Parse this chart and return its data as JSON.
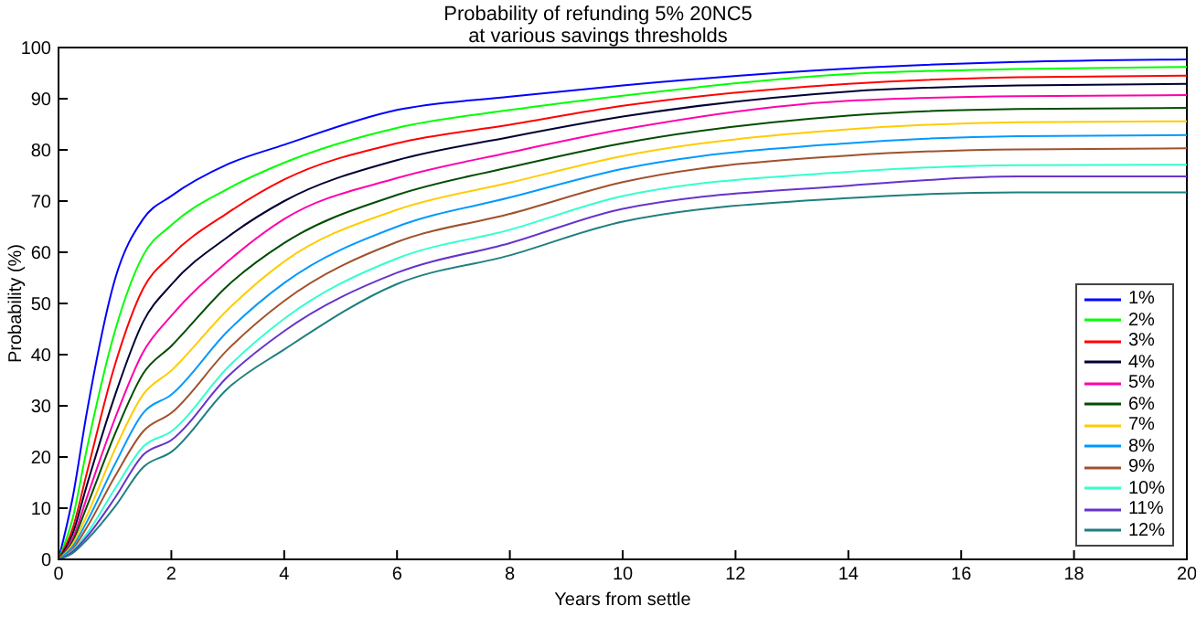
{
  "chart_data": {
    "type": "line",
    "title": "Probability of refunding 5% 20NC5",
    "subtitle": "at various savings thresholds",
    "xlabel": "Years from settle",
    "ylabel": "Probability (%)",
    "x": [
      0,
      0.25,
      0.5,
      1,
      1.5,
      2,
      3,
      4,
      6,
      8,
      10,
      14,
      17,
      20
    ],
    "xlim": [
      0,
      20
    ],
    "xticks": [
      0,
      2,
      4,
      6,
      8,
      10,
      12,
      14,
      16,
      18,
      20
    ],
    "ylim": [
      0,
      100
    ],
    "yticks": [
      0,
      10,
      20,
      30,
      40,
      50,
      60,
      70,
      80,
      90,
      100
    ],
    "grid": false,
    "legend": "bottom right",
    "marker": "none",
    "line_style": "solid",
    "series": [
      {
        "name": "1%",
        "color": "#0000ff",
        "values": [
          0,
          12,
          28.6,
          54.7,
          66.5,
          71,
          77.2,
          81,
          87.8,
          90.4,
          92.6,
          95.9,
          97.2,
          97.7
        ]
      },
      {
        "name": "2%",
        "color": "#00ff00",
        "values": [
          0,
          8,
          21.5,
          44.6,
          59.4,
          65.3,
          72.4,
          77.5,
          84.3,
          87.8,
          90.6,
          94.8,
          95.8,
          96.2
        ]
      },
      {
        "name": "3%",
        "color": "#ff0000",
        "values": [
          0,
          6,
          16.8,
          38,
          52.9,
          59.4,
          67.7,
          74.2,
          81.3,
          84.9,
          88.6,
          92.9,
          94.2,
          94.5
        ]
      },
      {
        "name": "4%",
        "color": "#000033",
        "values": [
          0,
          5,
          14.4,
          32,
          46.4,
          53.7,
          63,
          70,
          78,
          82.5,
          86.5,
          91.4,
          92.6,
          92.9
        ]
      },
      {
        "name": "5%",
        "color": "#ff00aa",
        "values": [
          0,
          4,
          12,
          27.5,
          40.5,
          47.6,
          58.2,
          66.5,
          74.5,
          79.5,
          84,
          89.6,
          90.5,
          90.7
        ]
      },
      {
        "name": "6%",
        "color": "#004d00",
        "values": [
          0,
          3.5,
          10.3,
          24.5,
          36.3,
          41.7,
          53.5,
          61.8,
          71.2,
          76.6,
          81.3,
          86.7,
          88,
          88.2
        ]
      },
      {
        "name": "7%",
        "color": "#ffcc00",
        "values": [
          0,
          3,
          8.5,
          21.5,
          32.2,
          36.9,
          48.8,
          58.2,
          68.3,
          73.6,
          78.8,
          84,
          85.4,
          85.6
        ]
      },
      {
        "name": "8%",
        "color": "#0099ff",
        "values": [
          0,
          2.5,
          7.3,
          18.6,
          28.6,
          32.2,
          44.6,
          54,
          65,
          70.7,
          76.3,
          81.3,
          82.7,
          82.9
        ]
      },
      {
        "name": "9%",
        "color": "#a0522d",
        "values": [
          0,
          2,
          6.2,
          16.2,
          25,
          28.6,
          41,
          50.5,
          62,
          67.5,
          73.7,
          78.9,
          80.1,
          80.3
        ]
      },
      {
        "name": "10%",
        "color": "#33ffcc",
        "values": [
          0,
          1.7,
          5,
          13.8,
          22,
          25,
          37.5,
          47,
          58.8,
          64.4,
          71,
          75.7,
          77,
          77.1
        ]
      },
      {
        "name": "11%",
        "color": "#6633cc",
        "values": [
          0,
          1.5,
          4.4,
          12,
          20.4,
          23.3,
          35.7,
          44.6,
          56,
          61.8,
          68.5,
          73,
          74.8,
          74.8
        ]
      },
      {
        "name": "12%",
        "color": "#1f7f7f",
        "values": [
          0,
          1.2,
          3.8,
          10.3,
          18,
          21,
          33.4,
          41,
          53.8,
          59.4,
          66,
          70.6,
          71.7,
          71.7
        ]
      }
    ]
  }
}
